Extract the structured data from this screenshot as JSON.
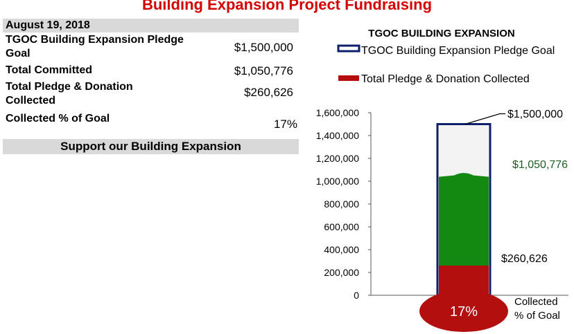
{
  "page_title": "Building Expansion Project Fundraising",
  "summary": {
    "date": "August 19, 2018",
    "rows": [
      {
        "label": "TGOC Building Expansion  Pledge Goal",
        "value": "$1,500,000"
      },
      {
        "label": "Total Committed",
        "value": "$1,050,776"
      },
      {
        "label": "Total Pledge & Donation Collected",
        "value": "$260,626"
      },
      {
        "label": "Collected % of Goal",
        "value": "17%"
      }
    ],
    "support_label": "Support our Building Expansion"
  },
  "colors": {
    "goal_outline": "#0b1f6b",
    "committed": "#128a12",
    "collected": "#b30f0f",
    "page_title": "#d40000",
    "committed_label": "#1b5e20"
  },
  "chart_data": {
    "type": "bar",
    "title": "TGOC BUILDING EXPANSION",
    "legend": [
      {
        "name": "TGOC Building Expansion  Pledge Goal",
        "style": "outline"
      },
      {
        "name": "Total Pledge & Donation Collected",
        "style": "filled"
      }
    ],
    "legend_position": "top",
    "ylim": [
      0,
      1600000
    ],
    "yticks": [
      0,
      200000,
      400000,
      600000,
      800000,
      1000000,
      1200000,
      1400000,
      1600000
    ],
    "ytick_labels": [
      "0",
      "200,000",
      "400,000",
      "600,000",
      "800,000",
      "1,000,000",
      "1,200,000",
      "1,400,000",
      "1,600,000"
    ],
    "grid": false,
    "goal": 1500000,
    "committed": 1050776,
    "collected": 260626,
    "annotations": {
      "goal": "$1,500,000",
      "committed": "$1,050,776",
      "collected": "$260,626",
      "bulb": "17%",
      "bulb_caption_line1": "Collected",
      "bulb_caption_line2": "% of Goal"
    }
  }
}
